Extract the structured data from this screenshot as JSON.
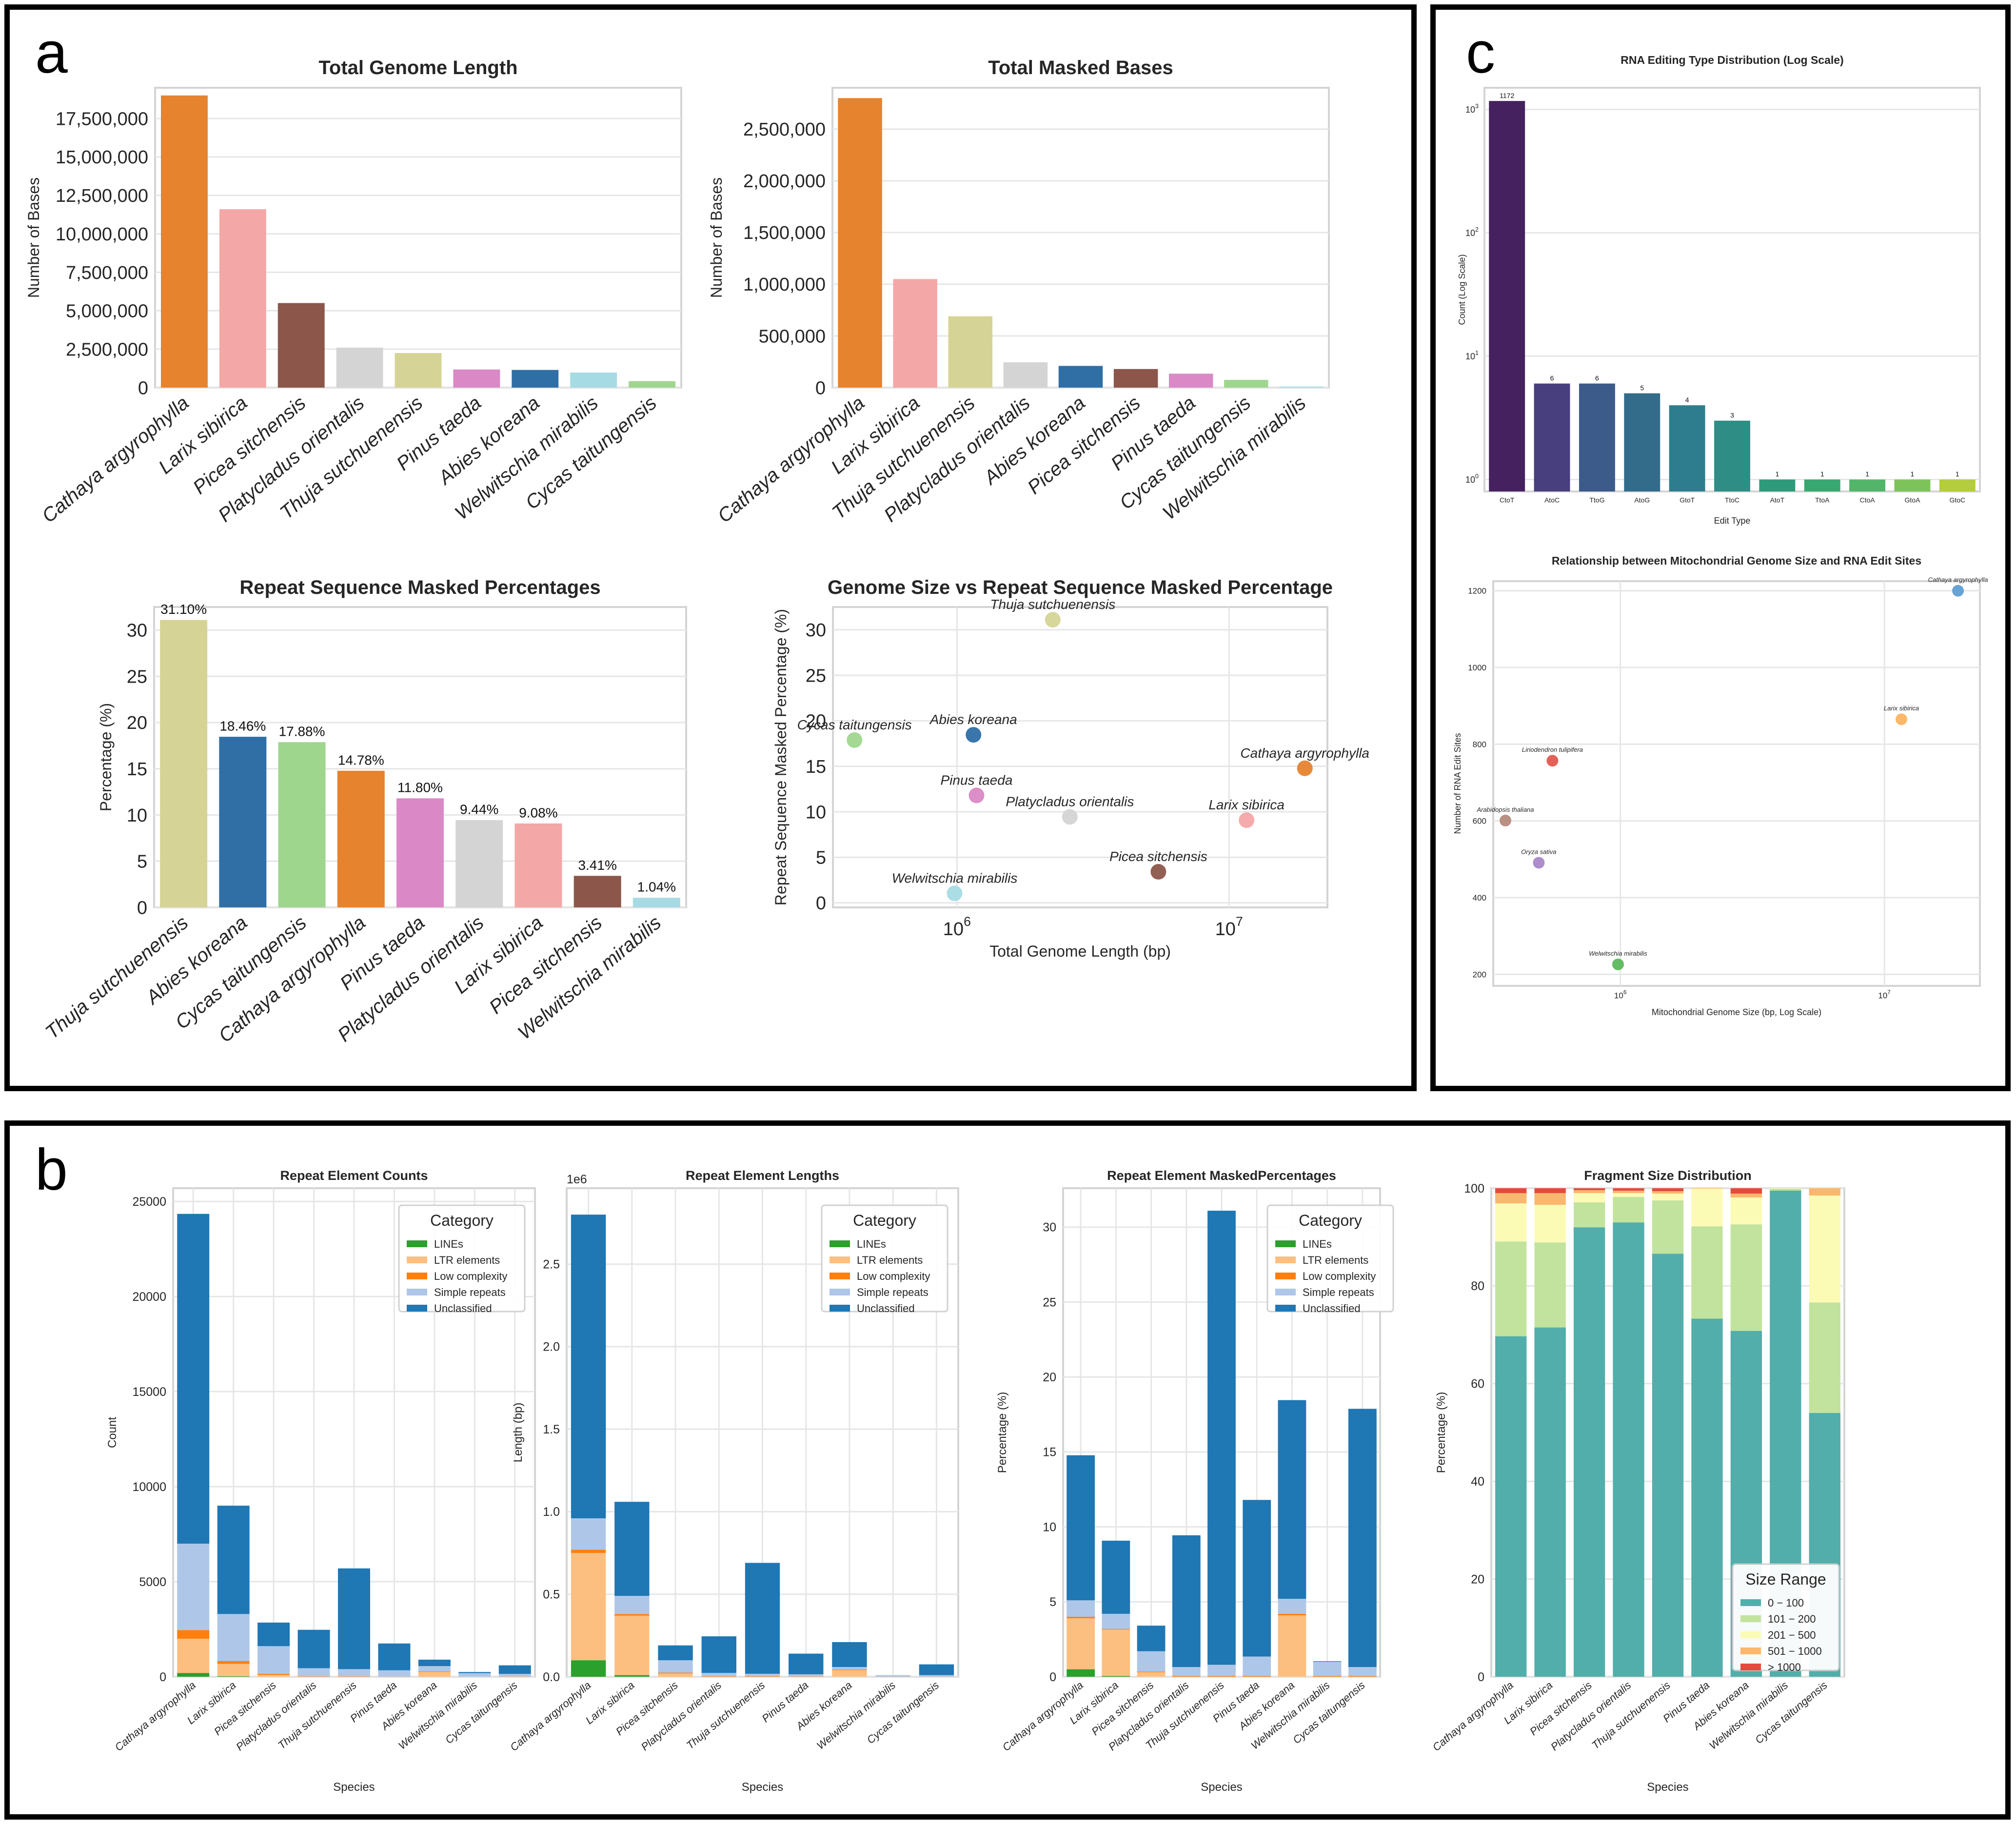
{
  "panel_labels": {
    "a": "a",
    "b": "b",
    "c": "c"
  },
  "colors": {
    "species": {
      "Cathaya argyrophylla": "#e6832e",
      "Larix sibirica": "#f4a7a7",
      "Picea sitchensis": "#8c564b",
      "Platycladus orientalis": "#d4d4d4",
      "Thuja sutchuenensis": "#d5d496",
      "Pinus taeda": "#da88c6",
      "Abies koreana": "#2f6fa6",
      "Welwitschia mirabilis": "#a7dbe3",
      "Cycas taitungensis": "#9fd68e"
    },
    "category": {
      "LINEs": "#2ca02c",
      "LTR elements": "#fdbf7f",
      "Low complexity": "#ff7f0e",
      "Simple repeats": "#aec7e8",
      "Unclassified": "#1f77b4"
    },
    "size_range": [
      "#52aeaa",
      "#c2e39d",
      "#fbfbb6",
      "#fbb76d",
      "#e24c3c"
    ],
    "edit_types": [
      "#46215f",
      "#483f7e",
      "#3c5b8b",
      "#336c8b",
      "#2e7d8e",
      "#2e8e86",
      "#2d9b79",
      "#37a871",
      "#52b56a",
      "#7dc35a",
      "#b4cd3c"
    ]
  },
  "chart_data": [
    {
      "id": "a1",
      "type": "bar",
      "title": "Total Genome Length",
      "xlabel": "",
      "ylabel": "Number of Bases",
      "ylim": [
        0,
        19500000
      ],
      "yticks": [
        0,
        2500000,
        5000000,
        7500000,
        10000000,
        12500000,
        15000000,
        17500000
      ],
      "ytick_labels": [
        "0",
        "2,500,000",
        "5,000,000",
        "7,500,000",
        "10,000,000",
        "12,500,000",
        "15,000,000",
        "17,500,000"
      ],
      "categories": [
        "Cathaya argyrophylla",
        "Larix sibirica",
        "Picea sitchensis",
        "Platycladus orientalis",
        "Thuja sutchuenensis",
        "Pinus taeda",
        "Abies koreana",
        "Welwitschia mirabilis",
        "Cycas taitungensis"
      ],
      "values": [
        19000000,
        11600000,
        5500000,
        2600000,
        2250000,
        1180000,
        1150000,
        980000,
        420000
      ]
    },
    {
      "id": "a2",
      "type": "bar",
      "title": "Total Masked Bases",
      "xlabel": "",
      "ylabel": "Number of Bases",
      "ylim": [
        0,
        2900000
      ],
      "yticks": [
        0,
        500000,
        1000000,
        1500000,
        2000000,
        2500000
      ],
      "ytick_labels": [
        "0",
        "500,000",
        "1,000,000",
        "1,500,000",
        "2,000,000",
        "2,500,000"
      ],
      "categories": [
        "Cathaya argyrophylla",
        "Larix sibirica",
        "Thuja sutchuenensis",
        "Platycladus orientalis",
        "Abies koreana",
        "Picea sitchensis",
        "Pinus taeda",
        "Cycas taitungensis",
        "Welwitschia mirabilis"
      ],
      "values": [
        2800000,
        1050000,
        690000,
        245000,
        210000,
        180000,
        135000,
        75000,
        10000
      ]
    },
    {
      "id": "a3",
      "type": "bar",
      "title": "Repeat Sequence Masked Percentages",
      "xlabel": "",
      "ylabel": "Percentage (%)",
      "ylim": [
        0,
        32.5
      ],
      "yticks": [
        0,
        5,
        10,
        15,
        20,
        25,
        30
      ],
      "ytick_labels": [
        "0",
        "5",
        "10",
        "15",
        "20",
        "25",
        "30"
      ],
      "categories": [
        "Thuja sutchuenensis",
        "Abies koreana",
        "Cycas taitungensis",
        "Cathaya argyrophylla",
        "Pinus taeda",
        "Platycladus orientalis",
        "Larix sibirica",
        "Picea sitchensis",
        "Welwitschia mirabilis"
      ],
      "values": [
        31.1,
        18.46,
        17.88,
        14.78,
        11.8,
        9.44,
        9.08,
        3.41,
        1.04
      ],
      "data_labels": [
        "31.10%",
        "18.46%",
        "17.88%",
        "14.78%",
        "11.80%",
        "9.44%",
        "9.08%",
        "3.41%",
        "1.04%"
      ]
    },
    {
      "id": "a4",
      "type": "scatter",
      "title": "Genome Size vs Repeat Sequence Masked Percentage",
      "xlabel": "Total Genome Length (bp)",
      "ylabel": "Repeat Sequence Masked Percentage (%)",
      "xscale": "log",
      "xlim": [
        350000,
        23000000
      ],
      "ylim": [
        -0.5,
        32.5
      ],
      "xticks": [
        1000000,
        10000000
      ],
      "xtick_base": [
        "10",
        "10"
      ],
      "xtick_exp": [
        "6",
        "7"
      ],
      "yticks": [
        0,
        5,
        10,
        15,
        20,
        25,
        30
      ],
      "ytick_labels": [
        "0",
        "5",
        "10",
        "15",
        "20",
        "25",
        "30"
      ],
      "points": [
        {
          "label": "Thuja sutchuenensis",
          "x": 2250000,
          "y": 31.1
        },
        {
          "label": "Cycas taitungensis",
          "x": 420000,
          "y": 17.88
        },
        {
          "label": "Abies koreana",
          "x": 1150000,
          "y": 18.46
        },
        {
          "label": "Pinus taeda",
          "x": 1180000,
          "y": 11.8
        },
        {
          "label": "Platycladus orientalis",
          "x": 2600000,
          "y": 9.44
        },
        {
          "label": "Cathaya argyrophylla",
          "x": 19000000,
          "y": 14.78
        },
        {
          "label": "Larix sibirica",
          "x": 11600000,
          "y": 9.08
        },
        {
          "label": "Picea sitchensis",
          "x": 5500000,
          "y": 3.41
        },
        {
          "label": "Welwitschia mirabilis",
          "x": 980000,
          "y": 1.04
        }
      ]
    },
    {
      "id": "c1",
      "type": "bar",
      "title": "RNA Editing Type Distribution (Log Scale)",
      "xlabel": "Edit Type",
      "ylabel": "Count (Log Scale)",
      "yscale": "log",
      "ylim": [
        0.8,
        1500
      ],
      "yticks": [
        1,
        10,
        100,
        1000
      ],
      "ytick_base": [
        "10",
        "10",
        "10",
        "10"
      ],
      "ytick_exp": [
        "0",
        "1",
        "2",
        "3"
      ],
      "categories": [
        "CtoT",
        "AtoC",
        "TtoG",
        "AtoG",
        "GtoT",
        "TtoC",
        "AtoT",
        "TtoA",
        "CtoA",
        "GtoA",
        "GtoC"
      ],
      "values": [
        1172,
        6,
        6,
        5,
        4,
        3,
        1,
        1,
        1,
        1,
        1
      ],
      "data_labels": [
        "1172",
        "6",
        "6",
        "5",
        "4",
        "3",
        "1",
        "1",
        "1",
        "1",
        "1"
      ]
    },
    {
      "id": "c2",
      "type": "scatter",
      "title": "Relationship between Mitochondrial Genome Size and RNA Edit Sites",
      "xlabel": "Mitochondrial Genome Size (bp, Log Scale)",
      "ylabel": "Number of RNA Edit Sites",
      "xscale": "log",
      "xlim": [
        330000,
        23000000
      ],
      "ylim": [
        170,
        1225
      ],
      "xticks": [
        1000000,
        10000000
      ],
      "xtick_base": [
        "10",
        "10"
      ],
      "xtick_exp": [
        "6",
        "7"
      ],
      "yticks": [
        200,
        400,
        600,
        800,
        1000,
        1200
      ],
      "ytick_labels": [
        "200",
        "400",
        "600",
        "800",
        "1000",
        "1200"
      ],
      "points": [
        {
          "label": "Cathaya argyrophylla",
          "x": 19000000,
          "y": 1200,
          "color": "#5f9ed1"
        },
        {
          "label": "Larix sibirica",
          "x": 11600000,
          "y": 865,
          "color": "#fdb462"
        },
        {
          "label": "Liriodendron tulipifera",
          "x": 553000,
          "y": 757,
          "color": "#e05a4e"
        },
        {
          "label": "Arabidopsis thaliana",
          "x": 367000,
          "y": 601,
          "color": "#b58a7c"
        },
        {
          "label": "Oryza sativa",
          "x": 491000,
          "y": 491,
          "color": "#a987c9"
        },
        {
          "label": "Welwitschia mirabilis",
          "x": 980000,
          "y": 226,
          "color": "#5cb85c"
        }
      ]
    },
    {
      "id": "b1",
      "type": "bar",
      "stacked": true,
      "title": "Repeat Element Counts",
      "xlabel": "Species",
      "ylabel": "Count",
      "ylim": [
        0,
        25700
      ],
      "yticks": [
        0,
        5000,
        10000,
        15000,
        20000,
        25000
      ],
      "ytick_labels": [
        "0",
        "5000",
        "10000",
        "15000",
        "20000",
        "25000"
      ],
      "legend_title": "Category",
      "legend_loc": "top-right",
      "categories": [
        "Cathaya argyrophylla",
        "Larix sibirica",
        "Picea sitchensis",
        "Platycladus orientalis",
        "Thuja sutchuenensis",
        "Pinus taeda",
        "Abies koreana",
        "Welwitschia mirabilis",
        "Cycas taitungensis"
      ],
      "series": [
        {
          "name": "LINEs",
          "values": [
            200,
            30,
            0,
            0,
            0,
            0,
            0,
            0,
            0
          ]
        },
        {
          "name": "LTR elements",
          "values": [
            1800,
            650,
            100,
            0,
            0,
            0,
            250,
            0,
            0
          ]
        },
        {
          "name": "Low complexity",
          "values": [
            450,
            150,
            60,
            20,
            20,
            10,
            30,
            5,
            10
          ]
        },
        {
          "name": "Simple repeats",
          "values": [
            4550,
            2470,
            1450,
            430,
            380,
            330,
            280,
            185,
            140
          ]
        },
        {
          "name": "Unclassified",
          "values": [
            17350,
            5700,
            1240,
            2020,
            5300,
            1410,
            340,
            60,
            450
          ]
        }
      ]
    },
    {
      "id": "b2",
      "type": "bar",
      "stacked": true,
      "title": "Repeat Element Lengths",
      "xlabel": "Species",
      "ylabel": "Length (bp)",
      "axis_offset_label": "1e6",
      "ylim": [
        0,
        2.96
      ],
      "yticks": [
        0,
        0.5,
        1.0,
        1.5,
        2.0,
        2.5
      ],
      "ytick_labels": [
        "0.0",
        "0.5",
        "1.0",
        "1.5",
        "2.0",
        "2.5"
      ],
      "legend_title": "Category",
      "legend_loc": "top-right",
      "categories": [
        "Cathaya argyrophylla",
        "Larix sibirica",
        "Picea sitchensis",
        "Platycladus orientalis",
        "Thuja sutchuenensis",
        "Pinus taeda",
        "Abies koreana",
        "Welwitschia mirabilis",
        "Cycas taitungensis"
      ],
      "series": [
        {
          "name": "LINEs",
          "values": [
            0.1,
            0.01,
            0,
            0,
            0,
            0,
            0,
            0,
            0
          ]
        },
        {
          "name": "LTR elements",
          "values": [
            0.65,
            0.36,
            0.02,
            0,
            0,
            0,
            0.04,
            0,
            0
          ]
        },
        {
          "name": "Low complexity",
          "values": [
            0.02,
            0.01,
            0.005,
            0.003,
            0.003,
            0.002,
            0.004,
            0.001,
            0.001
          ]
        },
        {
          "name": "Simple repeats",
          "values": [
            0.19,
            0.11,
            0.075,
            0.02,
            0.015,
            0.013,
            0.015,
            0.009,
            0.009
          ]
        },
        {
          "name": "Unclassified",
          "values": [
            1.84,
            0.57,
            0.09,
            0.222,
            0.672,
            0.125,
            0.151,
            0,
            0.065
          ]
        }
      ]
    },
    {
      "id": "b3",
      "type": "bar",
      "stacked": true,
      "title": "Repeat Element MaskedPercentages",
      "xlabel": "Species",
      "ylabel": "Percentage (%)",
      "ylim": [
        0,
        32.6
      ],
      "yticks": [
        0,
        5,
        10,
        15,
        20,
        25,
        30
      ],
      "ytick_labels": [
        "0",
        "5",
        "10",
        "15",
        "20",
        "25",
        "30"
      ],
      "legend_title": "Category",
      "legend_loc": "top-right",
      "categories": [
        "Cathaya argyrophylla",
        "Larix sibirica",
        "Picea sitchensis",
        "Platycladus orientalis",
        "Thuja sutchuenensis",
        "Pinus taeda",
        "Abies koreana",
        "Welwitschia mirabilis",
        "Cycas taitungensis"
      ],
      "series": [
        {
          "name": "LINEs",
          "values": [
            0.5,
            0.05,
            0,
            0,
            0,
            0,
            0,
            0,
            0
          ]
        },
        {
          "name": "LTR elements",
          "values": [
            3.4,
            3.1,
            0.3,
            0,
            0,
            0,
            4.1,
            0,
            0
          ]
        },
        {
          "name": "Low complexity",
          "values": [
            0.1,
            0.05,
            0.05,
            0.05,
            0.05,
            0.05,
            0.1,
            0.05,
            0.05
          ]
        },
        {
          "name": "Simple repeats",
          "values": [
            1.1,
            1.0,
            1.35,
            0.6,
            0.75,
            1.3,
            1.0,
            0.95,
            0.6
          ]
        },
        {
          "name": "Unclassified",
          "values": [
            9.68,
            4.88,
            1.71,
            8.79,
            30.3,
            10.45,
            13.26,
            0.04,
            17.23
          ]
        }
      ]
    },
    {
      "id": "b4",
      "type": "bar",
      "stacked": true,
      "title": "Fragment Size Distribution",
      "xlabel": "Species",
      "ylabel": "Percentage (%)",
      "ylim": [
        0,
        100
      ],
      "yticks": [
        0,
        20,
        40,
        60,
        80,
        100
      ],
      "ytick_labels": [
        "0",
        "20",
        "40",
        "60",
        "80",
        "100"
      ],
      "legend_title": "Size Range",
      "legend_loc": "bottom-right",
      "categories": [
        "Cathaya argyrophylla",
        "Larix sibirica",
        "Picea sitchensis",
        "Platycladus orientalis",
        "Thuja sutchuenensis",
        "Pinus taeda",
        "Abies koreana",
        "Welwitschia mirabilis",
        "Cycas taitungensis"
      ],
      "series": [
        {
          "name": "0 − 100",
          "values": [
            69.7,
            71.5,
            92.0,
            93.0,
            86.6,
            73.3,
            70.8,
            99.5,
            54.0
          ]
        },
        {
          "name": "101 − 200",
          "values": [
            19.4,
            17.4,
            5.1,
            5.2,
            10.9,
            18.9,
            21.8,
            0.4,
            22.6
          ]
        },
        {
          "name": "201 − 500",
          "values": [
            7.8,
            7.7,
            1.9,
            0.8,
            1.4,
            7.7,
            5.5,
            0.1,
            21.9
          ]
        },
        {
          "name": "501 − 1000",
          "values": [
            2.1,
            2.4,
            0.6,
            0.5,
            0.5,
            0.1,
            0.8,
            0,
            1.5
          ]
        },
        {
          "name": "> 1000",
          "values": [
            1.0,
            1.0,
            0.4,
            0.5,
            0.6,
            0,
            1.1,
            0,
            0
          ]
        }
      ]
    }
  ]
}
